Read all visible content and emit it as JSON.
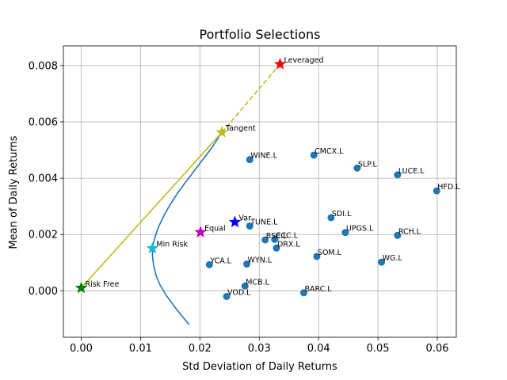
{
  "chart_data": {
    "type": "scatter",
    "title": "Portfolio Selections",
    "xlabel": "Std Deviation of Daily Returns",
    "ylabel": "Mean of Daily Returns",
    "xlim": [
      -0.003,
      0.0632
    ],
    "ylim": [
      -0.00165,
      0.0087
    ],
    "x_ticks": [
      "0.00",
      "0.01",
      "0.02",
      "0.03",
      "0.04",
      "0.05",
      "0.06"
    ],
    "x_tick_values": [
      0.0,
      0.01,
      0.02,
      0.03,
      0.04,
      0.05,
      0.06
    ],
    "y_ticks": [
      "0.000",
      "0.002",
      "0.004",
      "0.006",
      "0.008"
    ],
    "y_tick_values": [
      0.0,
      0.002,
      0.004,
      0.006,
      0.008
    ],
    "grid": true,
    "point_color": "#1f77b4",
    "frontier_color": "#1f77b4",
    "cml_color": "#bcbd22",
    "assets": [
      {
        "label": "WINE.L",
        "x": 0.0284,
        "y": 0.00466
      },
      {
        "label": "CMCX.L",
        "x": 0.0392,
        "y": 0.00482
      },
      {
        "label": "SLP.L",
        "x": 0.0465,
        "y": 0.00436
      },
      {
        "label": "LUCE.L",
        "x": 0.0533,
        "y": 0.00412
      },
      {
        "label": "HFD.L",
        "x": 0.0599,
        "y": 0.00355
      },
      {
        "label": "SDI.L",
        "x": 0.0421,
        "y": 0.0026
      },
      {
        "label": "TUNE.L",
        "x": 0.0284,
        "y": 0.0023
      },
      {
        "label": "UPGS.L",
        "x": 0.0445,
        "y": 0.00207
      },
      {
        "label": "RCH.L",
        "x": 0.0533,
        "y": 0.00197
      },
      {
        "label": "BSE.L",
        "x": 0.031,
        "y": 0.00181
      },
      {
        "label": "CCC.L",
        "x": 0.0326,
        "y": 0.00183
      },
      {
        "label": "DRX.L",
        "x": 0.0329,
        "y": 0.00152
      },
      {
        "label": "SOM.L",
        "x": 0.0397,
        "y": 0.00122
      },
      {
        "label": "WG.L",
        "x": 0.0506,
        "y": 0.00102
      },
      {
        "label": "YCA.L",
        "x": 0.0216,
        "y": 0.00093
      },
      {
        "label": "WYN.L",
        "x": 0.0279,
        "y": 0.00095
      },
      {
        "label": "MCB.L",
        "x": 0.0276,
        "y": 0.00017
      },
      {
        "label": "BARC.L",
        "x": 0.0375,
        "y": -7e-05
      },
      {
        "label": "VOD.L",
        "x": 0.0245,
        "y": -0.0002
      }
    ],
    "special": [
      {
        "label": "Leveraged",
        "x": 0.0335,
        "y": 0.00805,
        "color": "#ff0000"
      },
      {
        "label": "Tangent",
        "x": 0.0237,
        "y": 0.00563,
        "color": "#bcbd22"
      },
      {
        "label": "Var",
        "x": 0.0259,
        "y": 0.00244,
        "color": "#0000ff"
      },
      {
        "label": "Equal",
        "x": 0.0201,
        "y": 0.00208,
        "color": "#bf00bf"
      },
      {
        "label": "Min Risk",
        "x": 0.012,
        "y": 0.00151,
        "color": "#17becf"
      },
      {
        "label": "Risk Free",
        "x": 0.0,
        "y": 0.0001,
        "color": "#008000"
      }
    ],
    "frontier": {
      "x": [
        0.0182,
        0.0168,
        0.0155,
        0.0143,
        0.0133,
        0.0126,
        0.0122,
        0.012,
        0.0121,
        0.0125,
        0.0131,
        0.014,
        0.0151,
        0.0165,
        0.0181,
        0.0199,
        0.0219,
        0.0237
      ],
      "y": [
        -0.0012,
        -0.00085,
        -0.0005,
        -0.00015,
        0.0002,
        0.00055,
        0.0009,
        0.00125,
        0.0016,
        0.00195,
        0.0023,
        0.0027,
        0.0031,
        0.00355,
        0.004,
        0.0045,
        0.00505,
        0.00563
      ]
    },
    "cml": {
      "solid": {
        "x": [
          0.0,
          0.0237
        ],
        "y": [
          0.0001,
          0.00563
        ]
      },
      "dashed": {
        "x": [
          0.0237,
          0.0335
        ],
        "y": [
          0.00563,
          0.00805
        ]
      }
    }
  }
}
